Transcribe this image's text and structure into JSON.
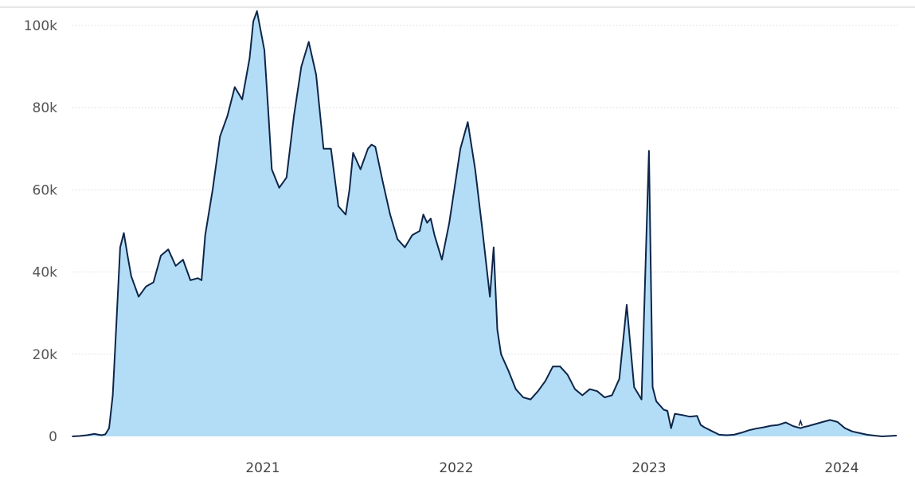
{
  "chart_data": {
    "type": "area",
    "x_tick_labels": [
      "2021",
      "2022",
      "2023",
      "2024"
    ],
    "y_tick_labels": [
      "0",
      "20k",
      "40k",
      "60k",
      "80k",
      "100k"
    ],
    "y_ticks": [
      0,
      20000,
      40000,
      60000,
      80000,
      100000
    ],
    "ylim": [
      0,
      104000
    ],
    "grid": true,
    "colors": {
      "fill": "#b3ddf7",
      "line": "#0e2549",
      "grid": "#e3e3e3",
      "top_border": "#cccccc"
    },
    "series": [
      {
        "x": [
          "2020-01-06",
          "2020-01-20",
          "2020-02-03",
          "2020-02-17",
          "2020-03-02",
          "2020-03-09",
          "2020-03-16",
          "2020-03-23",
          "2020-03-30",
          "2020-04-06",
          "2020-04-13",
          "2020-04-20",
          "2020-04-27",
          "2020-05-11",
          "2020-05-25",
          "2020-06-08",
          "2020-06-22",
          "2020-07-06",
          "2020-07-20",
          "2020-08-03",
          "2020-08-17",
          "2020-08-31",
          "2020-09-07",
          "2020-09-14",
          "2020-09-28",
          "2020-10-12",
          "2020-10-26",
          "2020-11-09",
          "2020-11-23",
          "2020-12-07",
          "2020-12-14",
          "2020-12-21",
          "2021-01-04",
          "2021-01-11",
          "2021-01-18",
          "2021-02-01",
          "2021-02-15",
          "2021-03-01",
          "2021-03-15",
          "2021-03-29",
          "2021-04-12",
          "2021-04-26",
          "2021-05-10",
          "2021-05-24",
          "2021-06-07",
          "2021-06-14",
          "2021-06-21",
          "2021-07-05",
          "2021-07-19",
          "2021-07-26",
          "2021-08-02",
          "2021-08-16",
          "2021-08-30",
          "2021-09-13",
          "2021-09-27",
          "2021-10-11",
          "2021-10-25",
          "2021-11-01",
          "2021-11-08",
          "2021-11-15",
          "2021-11-22",
          "2021-12-06",
          "2021-12-20",
          "2022-01-10",
          "2022-01-24",
          "2022-02-07",
          "2022-02-21",
          "2022-03-07",
          "2022-03-14",
          "2022-03-21",
          "2022-03-28",
          "2022-04-11",
          "2022-04-25",
          "2022-05-09",
          "2022-05-23",
          "2022-06-06",
          "2022-06-20",
          "2022-07-04",
          "2022-07-18",
          "2022-08-01",
          "2022-08-15",
          "2022-08-29",
          "2022-09-12",
          "2022-09-26",
          "2022-10-10",
          "2022-10-24",
          "2022-11-07",
          "2022-11-21",
          "2022-12-05",
          "2022-12-19",
          "2023-01-02",
          "2023-01-09",
          "2023-01-16",
          "2023-01-30",
          "2023-02-06",
          "2023-02-13",
          "2023-02-20",
          "2023-03-06",
          "2023-03-20",
          "2023-04-03",
          "2023-04-10",
          "2023-04-17",
          "2023-05-01",
          "2023-05-15",
          "2023-05-29",
          "2023-06-12",
          "2023-06-26",
          "2023-07-10",
          "2023-07-24",
          "2023-08-07",
          "2023-08-21",
          "2023-09-04",
          "2023-09-18",
          "2023-10-02",
          "2023-10-16",
          "2023-10-23",
          "2023-10-30",
          "2023-11-13",
          "2023-11-27",
          "2023-12-11",
          "2023-12-25",
          "2024-01-08",
          "2024-01-22",
          "2024-02-05",
          "2024-02-19",
          "2024-03-04",
          "2024-03-18",
          "2024-04-01",
          "2024-04-15"
        ],
        "values": [
          0,
          100,
          300,
          600,
          300,
          500,
          2000,
          10000,
          28000,
          46000,
          49500,
          44000,
          39000,
          34000,
          36500,
          37500,
          44000,
          45500,
          41500,
          43000,
          38000,
          38500,
          38000,
          49000,
          60000,
          73000,
          78000,
          85000,
          82000,
          92000,
          101000,
          103500,
          94000,
          80000,
          65000,
          60500,
          63000,
          78000,
          90000,
          96000,
          88000,
          70000,
          70000,
          56000,
          54000,
          60000,
          69000,
          65000,
          70000,
          71000,
          70500,
          62000,
          54000,
          48000,
          46000,
          49000,
          50000,
          54000,
          52000,
          53000,
          49000,
          43000,
          52000,
          70000,
          76500,
          65000,
          50000,
          34000,
          46000,
          26000,
          20000,
          16000,
          11500,
          9500,
          9000,
          11000,
          13500,
          17000,
          17000,
          15000,
          11500,
          10000,
          11500,
          11000,
          9500,
          10000,
          14000,
          32000,
          12000,
          9000,
          69500,
          12000,
          8500,
          6500,
          6200,
          2000,
          5500,
          5200,
          4800,
          5000,
          2800,
          2200,
          1300,
          400,
          300,
          400,
          900,
          1500,
          1900,
          2200,
          2600,
          2800,
          3400,
          2500,
          2000,
          2300,
          2500,
          3000,
          3500,
          4000,
          3500,
          2000,
          1200,
          800,
          400,
          200,
          0,
          100,
          200
        ],
        "annotations": [
          {
            "x": "2023-10-16",
            "y": 3400
          }
        ]
      }
    ]
  }
}
